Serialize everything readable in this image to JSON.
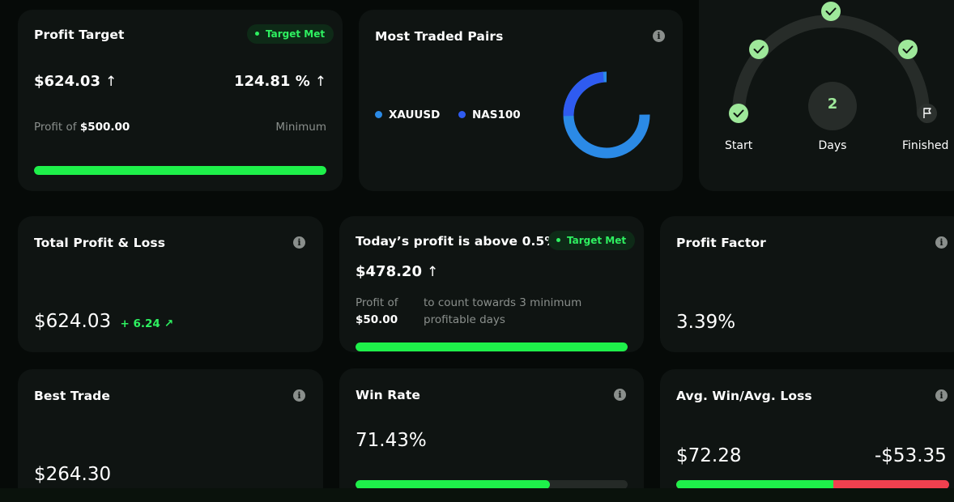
{
  "profit_target": {
    "title": "Profit Target",
    "badge": "Target Met",
    "amount": "$624.03",
    "percent": "124.81 %",
    "profit_of_label": "Profit of",
    "profit_of_value": "$500.00",
    "minimum_label": "Minimum",
    "progress": 1.0
  },
  "most_traded": {
    "title": "Most Traded Pairs",
    "legend": [
      {
        "name": "XAUUSD",
        "color": "#2b8ae6"
      },
      {
        "name": "NAS100",
        "color": "#2f5bf0"
      }
    ]
  },
  "days_tracker": {
    "days_value": "2",
    "start_label": "Start",
    "days_label": "Days",
    "finished_label": "Finished"
  },
  "total_pl": {
    "title": "Total Profit & Loss",
    "amount": "$624.03",
    "change": "+ 6.24"
  },
  "today_profit": {
    "title": "Today’s profit is above 0.5%",
    "badge": "Target Met",
    "amount": "$478.20",
    "profit_of_label": "Profit of",
    "profit_of_value": "$50.00",
    "note": "to count towards 3 minimum profitable days",
    "progress": 1.0
  },
  "profit_factor": {
    "title": "Profit Factor",
    "value": "3.39%"
  },
  "best_trade": {
    "title": "Best Trade",
    "value": "$264.30"
  },
  "win_rate": {
    "title": "Win Rate",
    "value": "71.43%",
    "progress": 0.7143
  },
  "avg_win_loss": {
    "title": "Avg. Win/Avg. Loss",
    "avg_win": "$72.28",
    "avg_loss": "-$53.35",
    "win_share": 0.575
  }
}
